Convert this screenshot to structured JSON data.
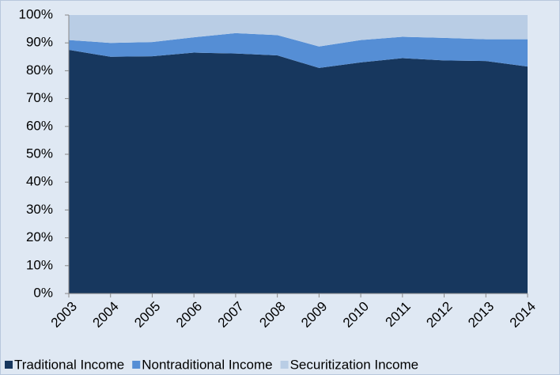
{
  "chart_data": {
    "type": "stacked_area",
    "categories": [
      "2003",
      "2004",
      "2005",
      "2006",
      "2007",
      "2008",
      "2009",
      "2010",
      "2011",
      "2012",
      "2013",
      "2014"
    ],
    "series": [
      {
        "name": "Traditional Income",
        "color": "#17375e",
        "values": [
          87.5,
          85,
          85.2,
          86.5,
          86.2,
          85.5,
          81,
          83,
          84.5,
          83.7,
          83.5,
          81.5
        ]
      },
      {
        "name": "Nontraditional Income",
        "color": "#558ed5",
        "values": [
          3.5,
          5,
          5.1,
          5.5,
          7.3,
          7.3,
          7.7,
          8,
          7.7,
          8.1,
          7.8,
          9.8
        ]
      },
      {
        "name": "Securitization Income",
        "color": "#b9cde5",
        "values": [
          9,
          10,
          9.7,
          8,
          6.5,
          7.2,
          11.3,
          9,
          7.8,
          8.2,
          8.7,
          8.7
        ]
      }
    ],
    "ylim": [
      0,
      100
    ],
    "yticks": [
      {
        "value": 0,
        "label": "0%"
      },
      {
        "value": 10,
        "label": "10%"
      },
      {
        "value": 20,
        "label": "20%"
      },
      {
        "value": 30,
        "label": "30%"
      },
      {
        "value": 40,
        "label": "40%"
      },
      {
        "value": 50,
        "label": "50%"
      },
      {
        "value": 60,
        "label": "60%"
      },
      {
        "value": 70,
        "label": "70%"
      },
      {
        "value": 80,
        "label": "80%"
      },
      {
        "value": 90,
        "label": "90%"
      },
      {
        "value": 100,
        "label": "100%"
      }
    ],
    "legend": "bottom"
  }
}
